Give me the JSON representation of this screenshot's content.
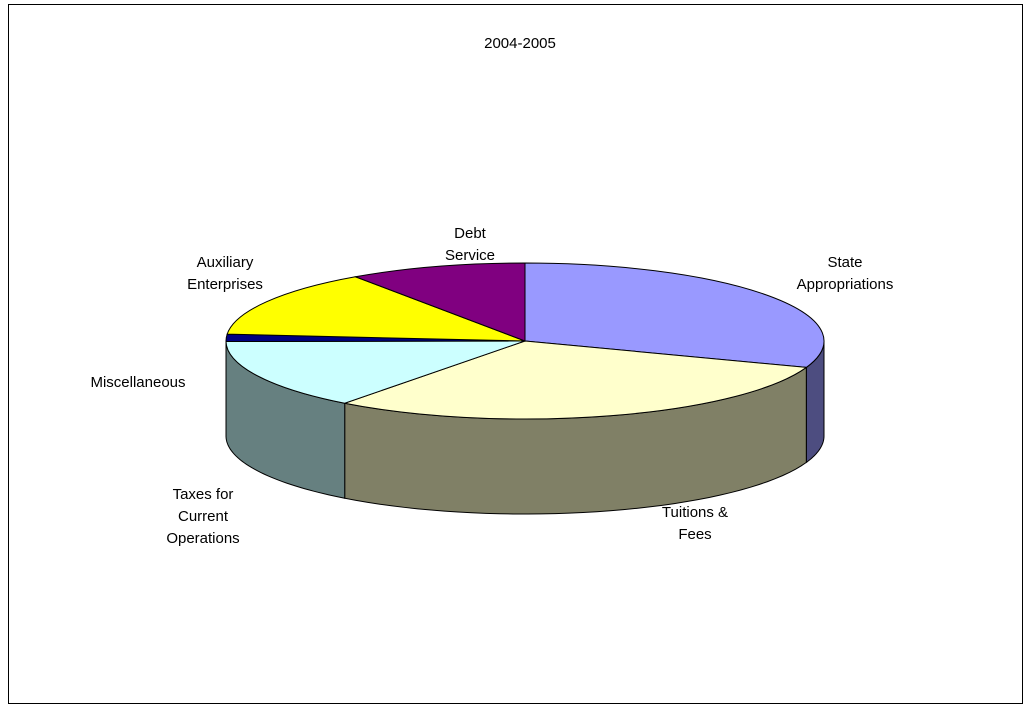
{
  "chart_data": {
    "type": "pie",
    "style": "3d-exploded-none",
    "title": "2004-2005",
    "legend": "none",
    "slices": [
      {
        "label": [
          "State",
          "Appropriations"
        ],
        "value": 30.5,
        "top": "#9999ff",
        "side": "#4d4d80"
      },
      {
        "label": [
          "Tuitions &",
          "Fees"
        ],
        "value": 29.8,
        "top": "#ffffcc",
        "side": "#808066"
      },
      {
        "label": [
          "Taxes for",
          "Current",
          "Operations"
        ],
        "value": 14.6,
        "top": "#ccffff",
        "side": "#668080"
      },
      {
        "label": [
          "Miscellaneous"
        ],
        "value": 1.5,
        "top": "#000080",
        "side": "#000040"
      },
      {
        "label": [
          "Auxiliary",
          "Enterprises"
        ],
        "value": 14.0,
        "top": "#ffff00",
        "side": "#808000"
      },
      {
        "label": [
          "Debt",
          "Service"
        ],
        "value": 9.6,
        "top": "#800080",
        "side": "#400040"
      }
    ]
  }
}
